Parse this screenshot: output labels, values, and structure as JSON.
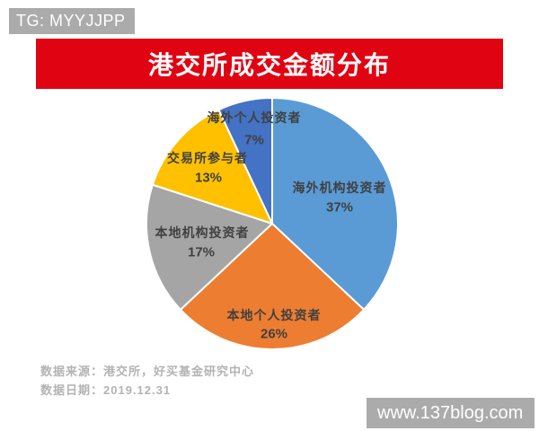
{
  "header": {
    "badge": "TG: MYYJJPP",
    "title": "港交所成交金额分布"
  },
  "chart_data": {
    "type": "pie",
    "title": "港交所成交金额分布",
    "start_angle_deg": 0,
    "direction": "clockwise",
    "legend": "off",
    "label_position": "inside",
    "slices": [
      {
        "label": "海外机构投资者",
        "value": 37,
        "pct_label": "37%",
        "color": "#5B9BD5"
      },
      {
        "label": "本地个人投资者",
        "value": 26,
        "pct_label": "26%",
        "color": "#ED7D31"
      },
      {
        "label": "本地机构投资者",
        "value": 17,
        "pct_label": "17%",
        "color": "#A5A5A5"
      },
      {
        "label": "交易所参与者",
        "value": 13,
        "pct_label": "13%",
        "color": "#FFC000"
      },
      {
        "label": "海外个人投资者",
        "value": 7,
        "pct_label": "7%",
        "color": "#4472C4"
      }
    ]
  },
  "footer": {
    "source": "数据来源：港交所，好买基金研究中心",
    "date": "数据日期：2019.12.31",
    "website": "www.137blog.com"
  },
  "colors": {
    "banner_red": "#E00413",
    "badge_gray": "#ABABAB",
    "slice_label_text": "#404040",
    "footer_text": "#B3B3B3"
  }
}
